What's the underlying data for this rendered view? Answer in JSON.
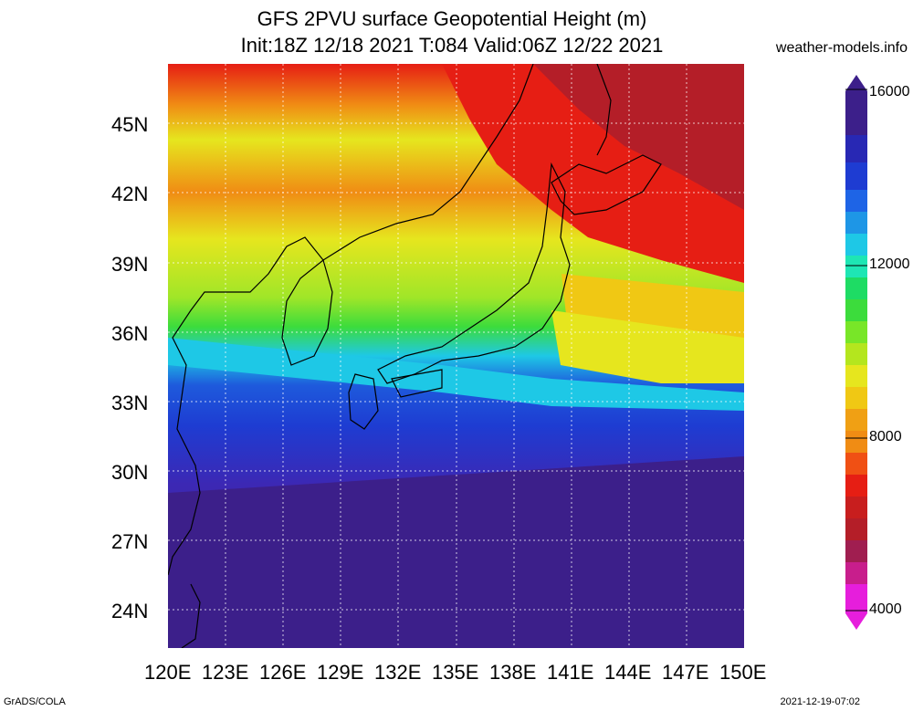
{
  "title_line1": "GFS 2PVU surface Geopotential Height (m)",
  "title_line2": "Init:18Z 12/18 2021 T:084 Valid:06Z 12/22 2021",
  "site": "weather-models.info",
  "lat_labels": [
    "45N",
    "42N",
    "39N",
    "36N",
    "33N",
    "30N",
    "27N",
    "24N"
  ],
  "lon_labels": [
    "120E",
    "123E",
    "126E",
    "129E",
    "132E",
    "135E",
    "138E",
    "141E",
    "144E",
    "147E",
    "150E"
  ],
  "colorbar_labels": [
    "16000",
    "12000",
    "8000",
    "4000"
  ],
  "footer_left": "GrADS/COLA",
  "footer_right": "2021-12-19-07:02",
  "colors": {
    "purple": "#3c1f8a",
    "blue": "#1e3cd2",
    "cyan": "#1ec8e6",
    "green": "#3cdc3c",
    "yellow": "#e6e61e",
    "orange": "#f08c14",
    "red": "#e61e14",
    "darkred": "#b41e28",
    "magenta": "#e61edc"
  }
}
